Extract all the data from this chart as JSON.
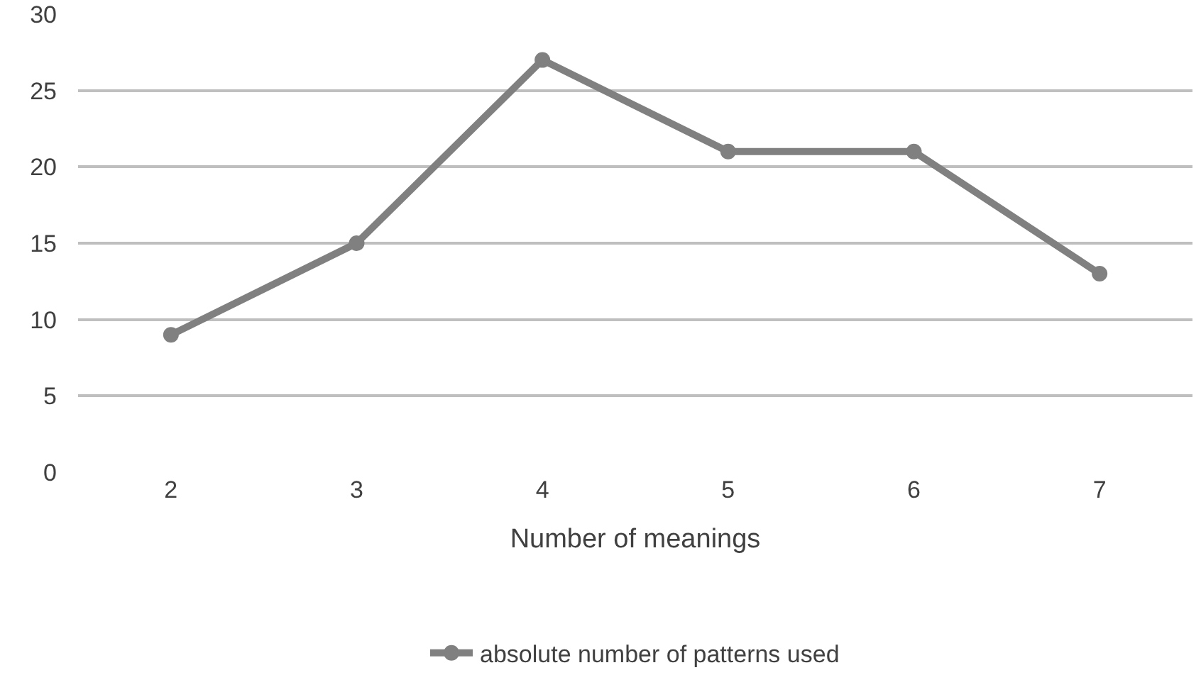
{
  "chart_data": {
    "type": "line",
    "xlabel": "Number of meanings",
    "categories": [
      "2",
      "3",
      "4",
      "5",
      "6",
      "7"
    ],
    "series": [
      {
        "name": "absolute number of patterns used",
        "color": "#808080",
        "values": [
          9,
          15,
          27,
          21,
          21,
          13
        ]
      }
    ],
    "ylim": [
      0,
      30
    ],
    "yticks": [
      0,
      5,
      10,
      15,
      20,
      25,
      30
    ],
    "grid": "y",
    "legend": "bottom",
    "marker": "circle",
    "line_style": "solid"
  }
}
